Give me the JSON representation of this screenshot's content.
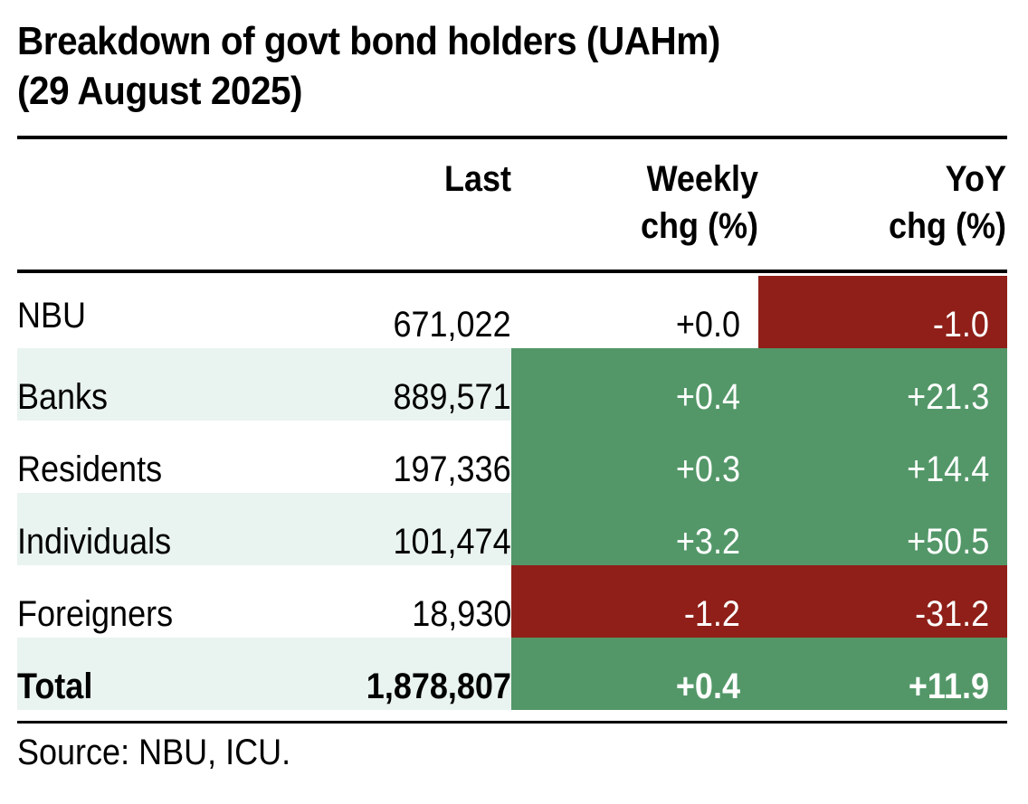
{
  "title": {
    "line1": "Breakdown of govt bond holders (UAHm)",
    "line2": "(29 August 2025)"
  },
  "columns": {
    "last": "Last",
    "weekly_line1": "Weekly",
    "weekly_line2": "chg (%)",
    "yoy_line1": "YoY",
    "yoy_line2": "chg (%)"
  },
  "colors": {
    "positive": "#539768",
    "negative": "#8f1f18",
    "row_shade": "#e9f3f0"
  },
  "chart_data": {
    "type": "table",
    "title": "Breakdown of govt bond holders (UAHm) (29 August 2025)",
    "columns": [
      "",
      "Last",
      "Weekly chg (%)",
      "YoY chg (%)"
    ],
    "rows": [
      {
        "label": "NBU",
        "last": "671,022",
        "weekly": "+0.0",
        "yoy": "-1.0",
        "weekly_sign": "neutral",
        "yoy_sign": "negative",
        "shaded": false,
        "bold": false
      },
      {
        "label": "Banks",
        "last": "889,571",
        "weekly": "+0.4",
        "yoy": "+21.3",
        "weekly_sign": "positive",
        "yoy_sign": "positive",
        "shaded": true,
        "bold": false
      },
      {
        "label": "Residents",
        "last": "197,336",
        "weekly": "+0.3",
        "yoy": "+14.4",
        "weekly_sign": "positive",
        "yoy_sign": "positive",
        "shaded": false,
        "bold": false
      },
      {
        "label": "Individuals",
        "last": "101,474",
        "weekly": "+3.2",
        "yoy": "+50.5",
        "weekly_sign": "positive",
        "yoy_sign": "positive",
        "shaded": true,
        "bold": false
      },
      {
        "label": "Foreigners",
        "last": "18,930",
        "weekly": "-1.2",
        "yoy": "-31.2",
        "weekly_sign": "negative",
        "yoy_sign": "negative",
        "shaded": false,
        "bold": false
      },
      {
        "label": "Total",
        "last": "1,878,807",
        "weekly": "+0.4",
        "yoy": "+11.9",
        "weekly_sign": "positive",
        "yoy_sign": "positive",
        "shaded": true,
        "bold": true
      }
    ]
  },
  "source": "Source: NBU, ICU."
}
